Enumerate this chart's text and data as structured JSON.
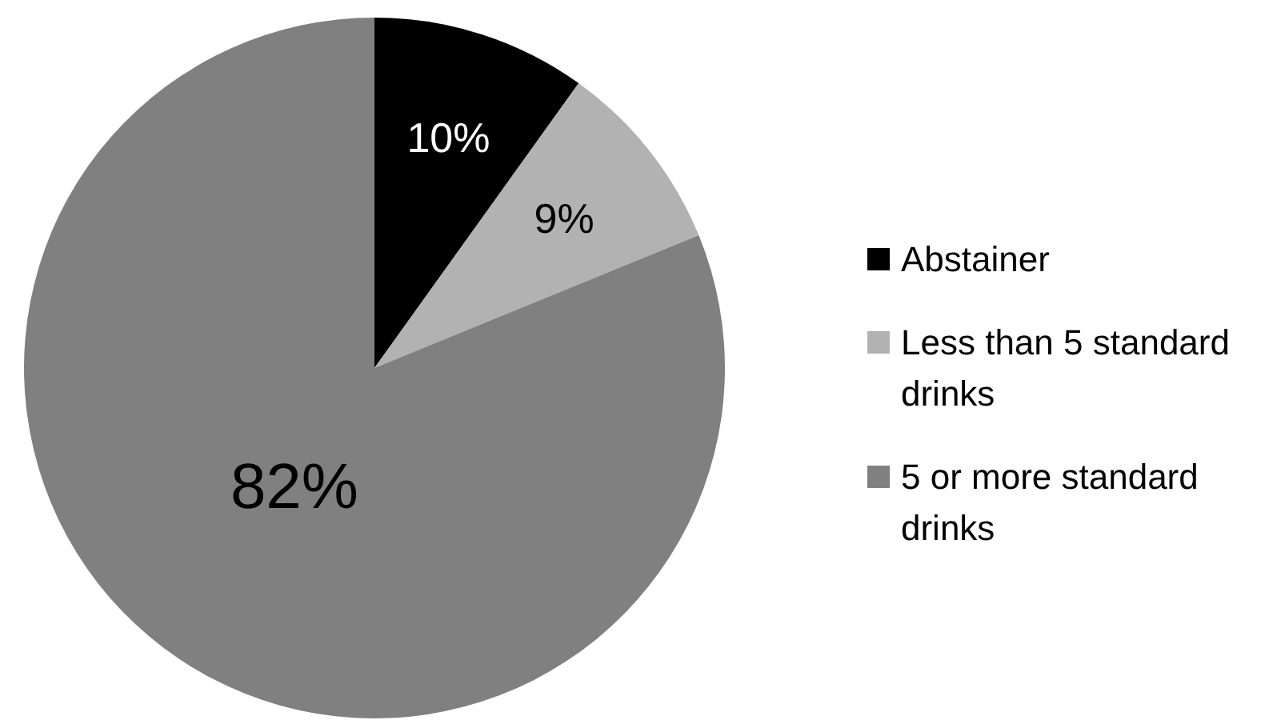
{
  "chart_data": {
    "type": "pie",
    "categories": [
      "Abstainer",
      "Less than 5 standard drinks",
      "5 or more standard drinks"
    ],
    "values": [
      10,
      9,
      82
    ],
    "colors": [
      "#000000",
      "#b2b2b2",
      "#808080"
    ],
    "value_labels": [
      "10%",
      "9%",
      "82%"
    ],
    "legend": "right"
  }
}
